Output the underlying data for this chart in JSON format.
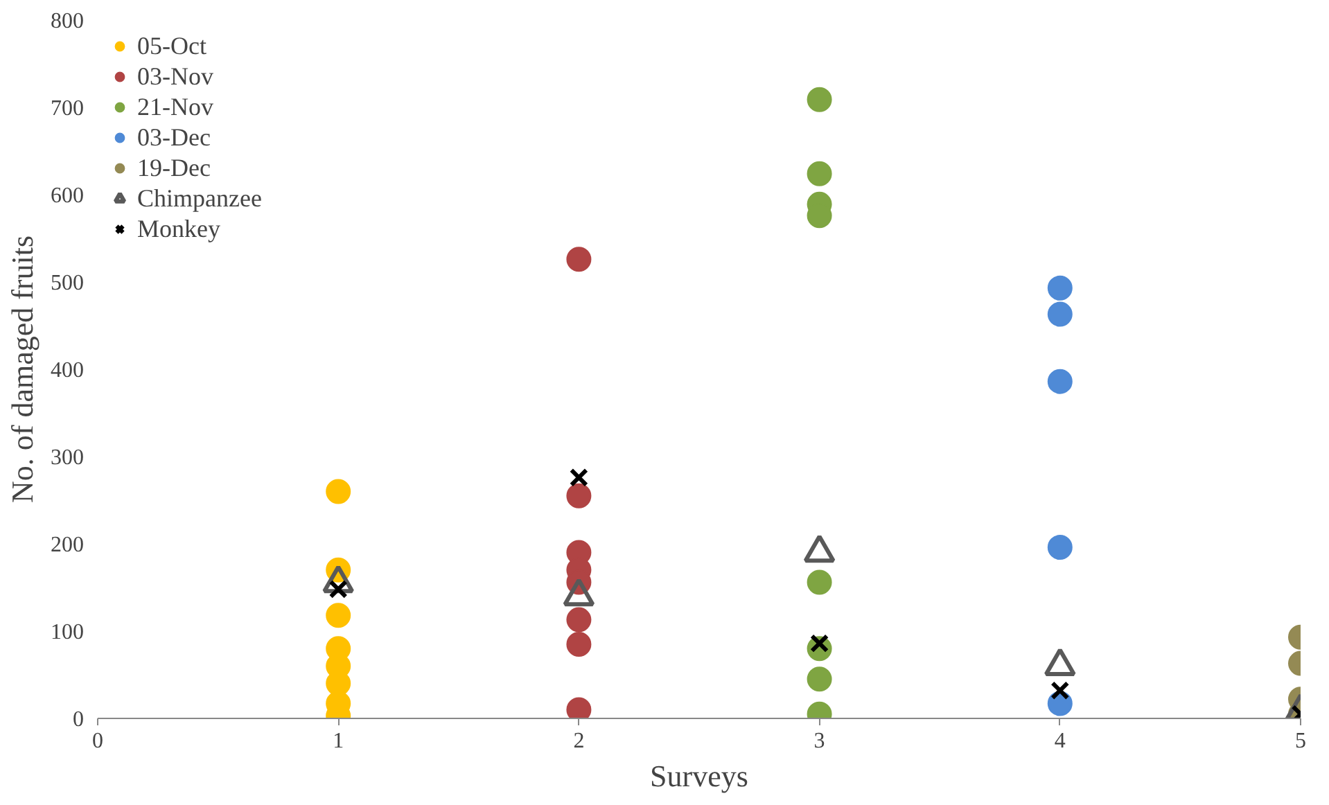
{
  "chart_data": {
    "type": "scatter",
    "xlabel": "Surveys",
    "ylabel": "No. of damaged fruits",
    "xlim": [
      0,
      5
    ],
    "ylim": [
      0,
      800
    ],
    "xticks": [
      0,
      1,
      2,
      3,
      4,
      5
    ],
    "yticks": [
      0,
      100,
      200,
      300,
      400,
      500,
      600,
      700,
      800
    ],
    "grid": false,
    "legend": "top left",
    "series": [
      {
        "name": "05-Oct",
        "color": "#ffc000",
        "marker": "circle",
        "x": [
          1,
          1,
          1,
          1,
          1,
          1,
          1,
          1
        ],
        "values": [
          260,
          170,
          118,
          80,
          60,
          40,
          17,
          3
        ]
      },
      {
        "name": "03-Nov",
        "color": "#b04444",
        "marker": "circle",
        "x": [
          2,
          2,
          2,
          2,
          2,
          2,
          2,
          2
        ],
        "values": [
          526,
          255,
          190,
          170,
          156,
          113,
          85,
          10
        ]
      },
      {
        "name": "21-Nov",
        "color": "#7fa542",
        "marker": "circle",
        "x": [
          3,
          3,
          3,
          3,
          3,
          3,
          3,
          3
        ],
        "values": [
          709,
          624,
          589,
          576,
          156,
          80,
          45,
          5
        ]
      },
      {
        "name": "03-Dec",
        "color": "#4f8ad6",
        "marker": "circle",
        "x": [
          4,
          4,
          4,
          4,
          4
        ],
        "values": [
          493,
          463,
          386,
          196,
          17
        ]
      },
      {
        "name": "19-Dec",
        "color": "#948a54",
        "marker": "circle",
        "x": [
          5,
          5,
          5,
          5
        ],
        "values": [
          93,
          63,
          22,
          5
        ]
      },
      {
        "name": "Chimpanzee",
        "color": "#595959",
        "marker": "triangle",
        "x": [
          1,
          2,
          3,
          4,
          5
        ],
        "values": [
          155,
          140,
          190,
          60,
          8
        ]
      },
      {
        "name": "Monkey",
        "color": "#000000",
        "marker": "cross",
        "x": [
          1,
          2,
          3,
          4,
          5
        ],
        "values": [
          148,
          276,
          86,
          32,
          5
        ]
      }
    ]
  }
}
